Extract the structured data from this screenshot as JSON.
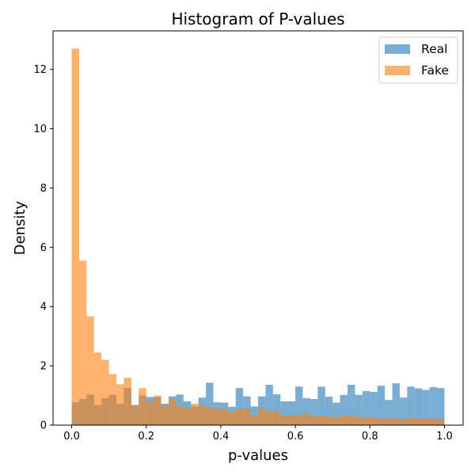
{
  "chart_data": {
    "type": "histogram",
    "title": "Histogram of P-values",
    "xlabel": "p-values",
    "ylabel": "Density",
    "xlim": [
      -0.05,
      1.05
    ],
    "ylim": [
      0,
      13.3
    ],
    "xticks": [
      0.0,
      0.2,
      0.4,
      0.6,
      0.8,
      1.0
    ],
    "xtick_labels": [
      "0.0",
      "0.2",
      "0.4",
      "0.6",
      "0.8",
      "1.0"
    ],
    "yticks": [
      0,
      2,
      4,
      6,
      8,
      10,
      12
    ],
    "ytick_labels": [
      "0",
      "2",
      "4",
      "6",
      "8",
      "10",
      "12"
    ],
    "bins": 50,
    "bin_range": [
      0,
      1
    ],
    "grid": false,
    "legend_position": "top-right",
    "series": [
      {
        "name": "Real",
        "color": "#1f77b4",
        "alpha": 0.6,
        "values": [
          0.77,
          0.88,
          1.03,
          0.68,
          0.91,
          1.02,
          0.72,
          1.25,
          0.68,
          1.0,
          0.95,
          0.95,
          0.72,
          0.97,
          1.03,
          0.8,
          0.63,
          0.93,
          1.43,
          0.77,
          0.76,
          0.62,
          1.25,
          0.97,
          0.63,
          0.97,
          1.36,
          1.04,
          0.8,
          0.8,
          1.3,
          0.91,
          0.88,
          1.3,
          0.96,
          0.76,
          1.02,
          1.36,
          1.02,
          1.15,
          1.12,
          1.33,
          0.85,
          1.41,
          0.93,
          1.3,
          1.24,
          1.19,
          1.28,
          1.25
        ]
      },
      {
        "name": "Fake",
        "color": "#ff7f0e",
        "alpha": 0.6,
        "values": [
          12.7,
          5.55,
          3.67,
          2.45,
          2.2,
          1.72,
          1.38,
          1.6,
          0.68,
          1.25,
          0.8,
          1.0,
          0.65,
          0.89,
          0.65,
          0.58,
          0.72,
          0.67,
          0.6,
          0.56,
          0.55,
          0.45,
          0.55,
          0.55,
          0.32,
          0.58,
          0.46,
          0.46,
          0.32,
          0.33,
          0.33,
          0.4,
          0.3,
          0.32,
          0.31,
          0.25,
          0.32,
          0.32,
          0.28,
          0.25,
          0.26,
          0.22,
          0.23,
          0.22,
          0.2,
          0.23,
          0.22,
          0.22,
          0.22,
          0.2
        ]
      }
    ]
  }
}
